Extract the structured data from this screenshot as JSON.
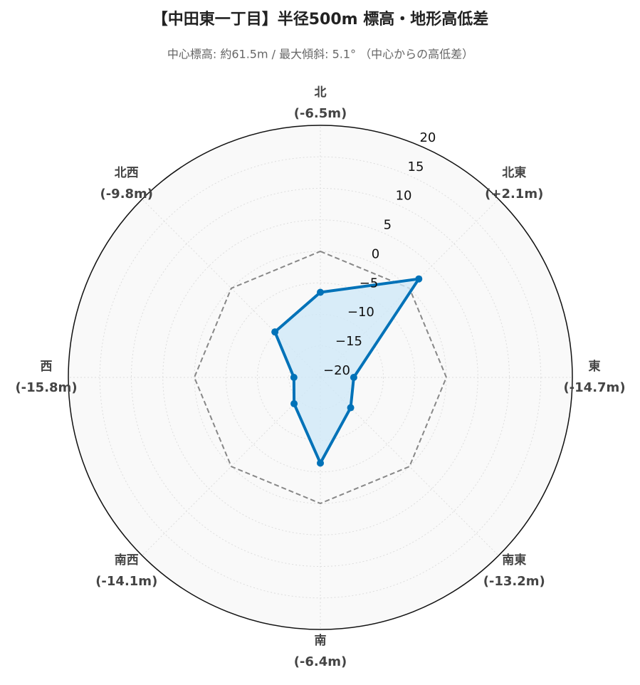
{
  "chart_data": {
    "type": "radar",
    "title": "【中田東一丁目】半径500m 標高・地形高低差",
    "subtitle": "中心標高: 約61.5m / 最大傾斜: 5.1° （中心からの高低差）",
    "categories": [
      "北",
      "北東",
      "東",
      "南東",
      "南",
      "南西",
      "西",
      "北西"
    ],
    "series": [
      {
        "color": "#0072b8",
        "fill": "#cfe9f7",
        "values": [
          -6.5,
          2.1,
          -14.7,
          -13.2,
          -6.4,
          -14.1,
          -15.8,
          -9.8
        ],
        "value_labels": [
          "(-6.5m)",
          "(+2.1m)",
          "(-14.7m)",
          "(-13.2m)",
          "(-6.4m)",
          "(-14.1m)",
          "(-15.8m)",
          "(-9.8m)"
        ]
      }
    ],
    "reference_value": 0,
    "reference_color": "#888888",
    "rlim": [
      -20,
      20
    ],
    "rticks": [
      {
        "value": -20,
        "label": "−20"
      },
      {
        "value": -15,
        "label": "−15"
      },
      {
        "value": -10,
        "label": "−10"
      },
      {
        "value": -5,
        "label": "−5"
      },
      0,
      5,
      10,
      15,
      20
    ],
    "grid": true
  }
}
